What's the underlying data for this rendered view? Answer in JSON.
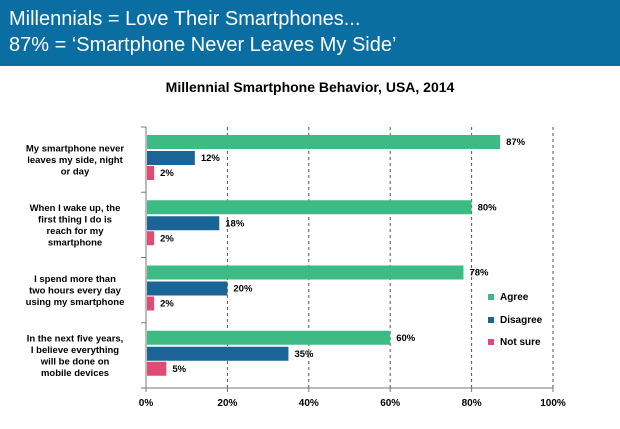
{
  "header": {
    "line1": "Millennials = Love Their Smartphones...",
    "line2": "87% = ‘Smartphone Never Leaves My Side’"
  },
  "colors": {
    "header_bg": "#0b6ea3",
    "agree": "#3dbb84",
    "disagree": "#1a6596",
    "not_sure": "#e04b74"
  },
  "chart_data": {
    "type": "bar",
    "orientation": "horizontal",
    "title": "Millennial Smartphone Behavior, USA, 2014",
    "categories": [
      [
        "My smartphone never",
        "leaves my side, night",
        "or day"
      ],
      [
        "When I wake up, the",
        "first thing I do is",
        "reach for my",
        "smartphone"
      ],
      [
        "I spend more than",
        "two hours every day",
        "using my smartphone"
      ],
      [
        "In the next five years,",
        "I believe everything",
        "will be done on",
        "mobile devices"
      ]
    ],
    "series": [
      {
        "name": "Agree",
        "values": [
          87,
          80,
          78,
          60
        ],
        "labels": [
          "87%",
          "80%",
          "78%",
          "60%"
        ]
      },
      {
        "name": "Disagree",
        "values": [
          12,
          18,
          20,
          35
        ],
        "labels": [
          "12%",
          "18%",
          "20%",
          "35%"
        ]
      },
      {
        "name": "Not sure",
        "values": [
          2,
          2,
          2,
          5
        ],
        "labels": [
          "2%",
          "2%",
          "2%",
          "5%"
        ]
      }
    ],
    "xlim": [
      0,
      100
    ],
    "xticks": [
      "0%",
      "20%",
      "40%",
      "60%",
      "80%",
      "100%"
    ],
    "grid": "vertical dashed",
    "legend": "right"
  }
}
